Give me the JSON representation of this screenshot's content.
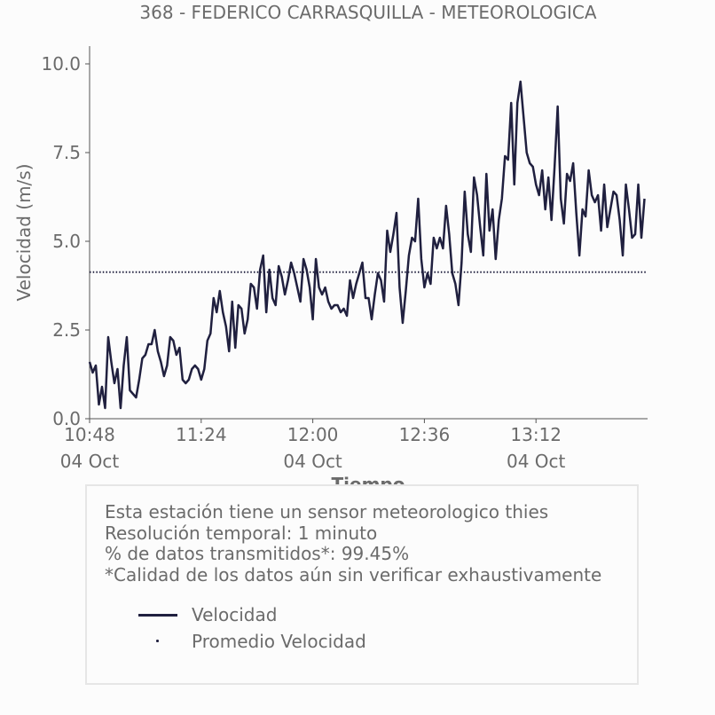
{
  "chart_data": {
    "type": "line",
    "title": "368 - FEDERICO CARRASQUILLA - METEOROLOGICA",
    "xlabel": "Tiempo",
    "ylabel": "Velocidad (m/s)",
    "x_start": "10:48",
    "x_end": "13:48",
    "x_tick_labels": [
      {
        "time": "10:48",
        "date": "04 Oct"
      },
      {
        "time": "11:24",
        "date": ""
      },
      {
        "time": "12:00",
        "date": "04 Oct"
      },
      {
        "time": "12:36",
        "date": ""
      },
      {
        "time": "13:12",
        "date": "04 Oct"
      }
    ],
    "y_ticks": [
      "0.0",
      "2.5",
      "5.0",
      "7.5",
      "10.0"
    ],
    "ylim": [
      0,
      10.5
    ],
    "grid": false,
    "series": [
      {
        "name": "Velocidad",
        "color": "#20203f",
        "values": [
          1.6,
          1.3,
          1.5,
          0.4,
          0.9,
          0.3,
          2.3,
          1.6,
          1.0,
          1.4,
          0.3,
          1.5,
          2.3,
          0.8,
          0.7,
          0.6,
          1.1,
          1.7,
          1.8,
          2.1,
          2.1,
          2.5,
          1.9,
          1.6,
          1.2,
          1.5,
          2.3,
          2.2,
          1.8,
          2.0,
          1.1,
          1.0,
          1.1,
          1.4,
          1.5,
          1.4,
          1.1,
          1.4,
          2.2,
          2.4,
          3.4,
          3.0,
          3.6,
          3.0,
          2.6,
          1.9,
          3.3,
          2.0,
          3.2,
          3.1,
          2.4,
          2.8,
          3.8,
          3.7,
          3.1,
          4.2,
          4.6,
          3.0,
          4.2,
          3.4,
          3.2,
          4.3,
          4.0,
          3.5,
          3.9,
          4.4,
          4.1,
          3.7,
          3.3,
          4.5,
          4.2,
          3.7,
          2.8,
          4.5,
          3.7,
          3.5,
          3.7,
          3.3,
          3.1,
          3.2,
          3.2,
          3.0,
          3.1,
          2.9,
          3.9,
          3.4,
          3.8,
          4.1,
          4.4,
          3.4,
          3.4,
          2.8,
          3.5,
          4.1,
          3.9,
          3.3,
          5.3,
          4.7,
          5.2,
          5.8,
          3.7,
          2.7,
          3.6,
          4.6,
          5.1,
          5.0,
          6.2,
          4.5,
          3.7,
          4.1,
          3.8,
          5.1,
          4.8,
          5.1,
          4.8,
          6.0,
          5.2,
          4.1,
          3.8,
          3.2,
          4.4,
          6.4,
          5.2,
          4.7,
          6.8,
          6.3,
          5.4,
          4.6,
          6.9,
          5.3,
          5.9,
          4.5,
          5.6,
          6.2,
          7.4,
          7.3,
          8.9,
          6.6,
          8.9,
          9.5,
          8.5,
          7.5,
          7.2,
          7.1,
          6.6,
          6.3,
          7.0,
          5.9,
          6.8,
          5.6,
          7.1,
          8.8,
          6.2,
          5.5,
          6.9,
          6.7,
          7.2,
          5.8,
          4.6,
          5.9,
          5.7,
          7.0,
          6.3,
          6.1,
          6.3,
          5.3,
          6.6,
          5.4,
          5.9,
          6.4,
          6.3,
          5.6,
          4.6,
          6.6,
          5.9,
          5.1,
          5.2,
          6.6,
          5.1,
          6.2
        ]
      },
      {
        "name": "Promedio Velocidad",
        "color": "#20203f",
        "style": "dotted",
        "value": 4.13
      }
    ]
  },
  "info": {
    "line1": "Esta estación tiene un sensor meteorologico thies",
    "line2": "Resolución temporal: 1 minuto",
    "line3": "% de datos transmitidos*: 99.45%",
    "line4": "*Calidad de los datos aún sin verificar exhaustivamente"
  },
  "legend": {
    "item1": "Velocidad",
    "item2": "Promedio Velocidad"
  }
}
